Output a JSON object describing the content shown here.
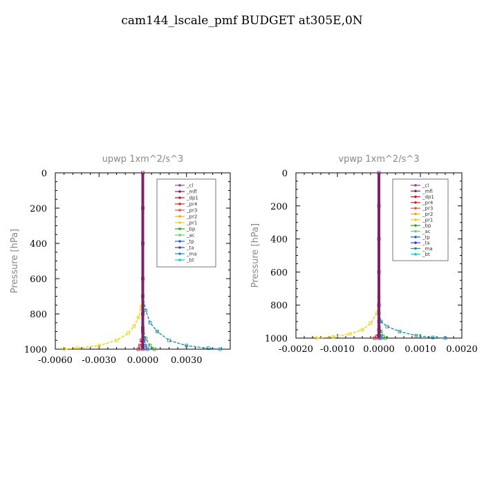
{
  "title": "cam144_lscale_pmf  BUDGET at305E,0N",
  "legend_entries": [
    {
      "label": "_cl",
      "color": "#7a4aa0",
      "marker": "triangle-up"
    },
    {
      "label": "_mfl",
      "color": "#80206a",
      "marker": "triangle-right"
    },
    {
      "label": "_dp1",
      "color": "#c8102e",
      "marker": "triangle-left"
    },
    {
      "label": "_pr4",
      "color": "#d42020",
      "marker": "diamond"
    },
    {
      "label": "_pr3",
      "color": "#e8503a",
      "marker": "triangle-down"
    },
    {
      "label": "_pr2",
      "color": "#f5a623",
      "marker": "triangle-up"
    },
    {
      "label": "_pr1",
      "color": "#f0d000",
      "marker": "square"
    },
    {
      "label": "_bp",
      "color": "#2ca02c",
      "marker": "x"
    },
    {
      "label": "_ac",
      "color": "#5cd65c",
      "marker": "diamond"
    },
    {
      "label": "_tp",
      "color": "#1f5fd0",
      "marker": "star"
    },
    {
      "label": "_ta",
      "color": "#3a3ad8",
      "marker": "plus"
    },
    {
      "label": "_ma",
      "color": "#1a8ab0",
      "marker": "dash"
    },
    {
      "label": "_bt",
      "color": "#00d0e0",
      "marker": "dot"
    }
  ],
  "chart_data": [
    {
      "type": "line",
      "title": "upwp   1xm^2/s^3",
      "ylabel": "Pressure [hPa]",
      "xlim": [
        -0.006,
        0.006
      ],
      "ylim": [
        1000,
        0
      ],
      "xticks": [
        "-0.0060",
        "-0.0030",
        "0.0000",
        "0.0030"
      ],
      "xtick_values": [
        -0.006,
        -0.003,
        0,
        0.003
      ],
      "yticks": [
        "0",
        "200",
        "400",
        "600",
        "800",
        "1000"
      ],
      "ytick_values": [
        0,
        200,
        400,
        600,
        800,
        1000
      ],
      "series": [
        {
          "name": "_pr1",
          "color": "#f0d000",
          "x": [
            0,
            -0.0001,
            -0.0003,
            -0.0006,
            -0.001,
            -0.0018,
            -0.003,
            -0.0045,
            -0.0054
          ],
          "y": [
            700,
            760,
            820,
            870,
            910,
            950,
            980,
            995,
            1000
          ]
        },
        {
          "name": "_ma",
          "color": "#1a8ab0",
          "x": [
            0,
            0.0002,
            0.0005,
            0.001,
            0.0018,
            0.003,
            0.0045,
            0.0053
          ],
          "y": [
            700,
            780,
            850,
            900,
            950,
            980,
            995,
            1000
          ]
        },
        {
          "name": "_bp",
          "color": "#2ca02c",
          "x": [
            0,
            0.0002,
            0.0005,
            0.0008
          ],
          "y": [
            880,
            940,
            980,
            1000
          ]
        },
        {
          "name": "_tp",
          "color": "#1f5fd0",
          "x": [
            0,
            0.0001,
            0.0002,
            0.0003
          ],
          "y": [
            880,
            940,
            980,
            1000
          ]
        },
        {
          "name": "_dp1",
          "color": "#c8102e",
          "x": [
            0,
            -0.0001,
            -0.0002,
            -0.0003
          ],
          "y": [
            900,
            950,
            980,
            1000
          ]
        },
        {
          "name": "_mfl",
          "color": "#80206a",
          "x": [
            0,
            0,
            0,
            0,
            0,
            0
          ],
          "y": [
            0,
            200,
            400,
            600,
            800,
            1000
          ]
        }
      ]
    },
    {
      "type": "line",
      "title": "vpwp   1xm^2/s^3",
      "ylabel": "Pressure [hPa]",
      "xlim": [
        -0.002,
        0.002
      ],
      "ylim": [
        1000,
        0
      ],
      "xticks": [
        "-0.0020",
        "-0.0010",
        "0.0000",
        "0.0010",
        "0.0020"
      ],
      "xtick_values": [
        -0.002,
        -0.001,
        0,
        0.001,
        0.002
      ],
      "yticks": [
        "0",
        "200",
        "400",
        "600",
        "800",
        "1000"
      ],
      "ytick_values": [
        0,
        200,
        400,
        600,
        800,
        1000
      ],
      "series": [
        {
          "name": "_pr1",
          "color": "#f0d000",
          "x": [
            0,
            -5e-05,
            -0.0002,
            -0.0004,
            -0.0007,
            -0.0011,
            -0.0015
          ],
          "y": [
            750,
            850,
            910,
            950,
            975,
            993,
            1000
          ]
        },
        {
          "name": "_ma",
          "color": "#1a8ab0",
          "x": [
            0,
            5e-05,
            0.0002,
            0.0005,
            0.0009,
            0.0013,
            0.0016
          ],
          "y": [
            850,
            900,
            930,
            960,
            985,
            996,
            1000
          ]
        },
        {
          "name": "_bp",
          "color": "#2ca02c",
          "x": [
            0,
            5e-05,
            0.0001,
            0.00015
          ],
          "y": [
            900,
            960,
            990,
            1000
          ]
        },
        {
          "name": "_tp",
          "color": "#1f5fd0",
          "x": [
            0,
            2e-05,
            5e-05
          ],
          "y": [
            800,
            900,
            1000
          ]
        },
        {
          "name": "_dp1",
          "color": "#c8102e",
          "x": [
            0,
            -5e-05,
            -0.0001
          ],
          "y": [
            950,
            990,
            1000
          ]
        },
        {
          "name": "_mfl",
          "color": "#80206a",
          "x": [
            0,
            0,
            0,
            0,
            0,
            0
          ],
          "y": [
            0,
            200,
            400,
            600,
            800,
            1000
          ]
        }
      ]
    }
  ]
}
